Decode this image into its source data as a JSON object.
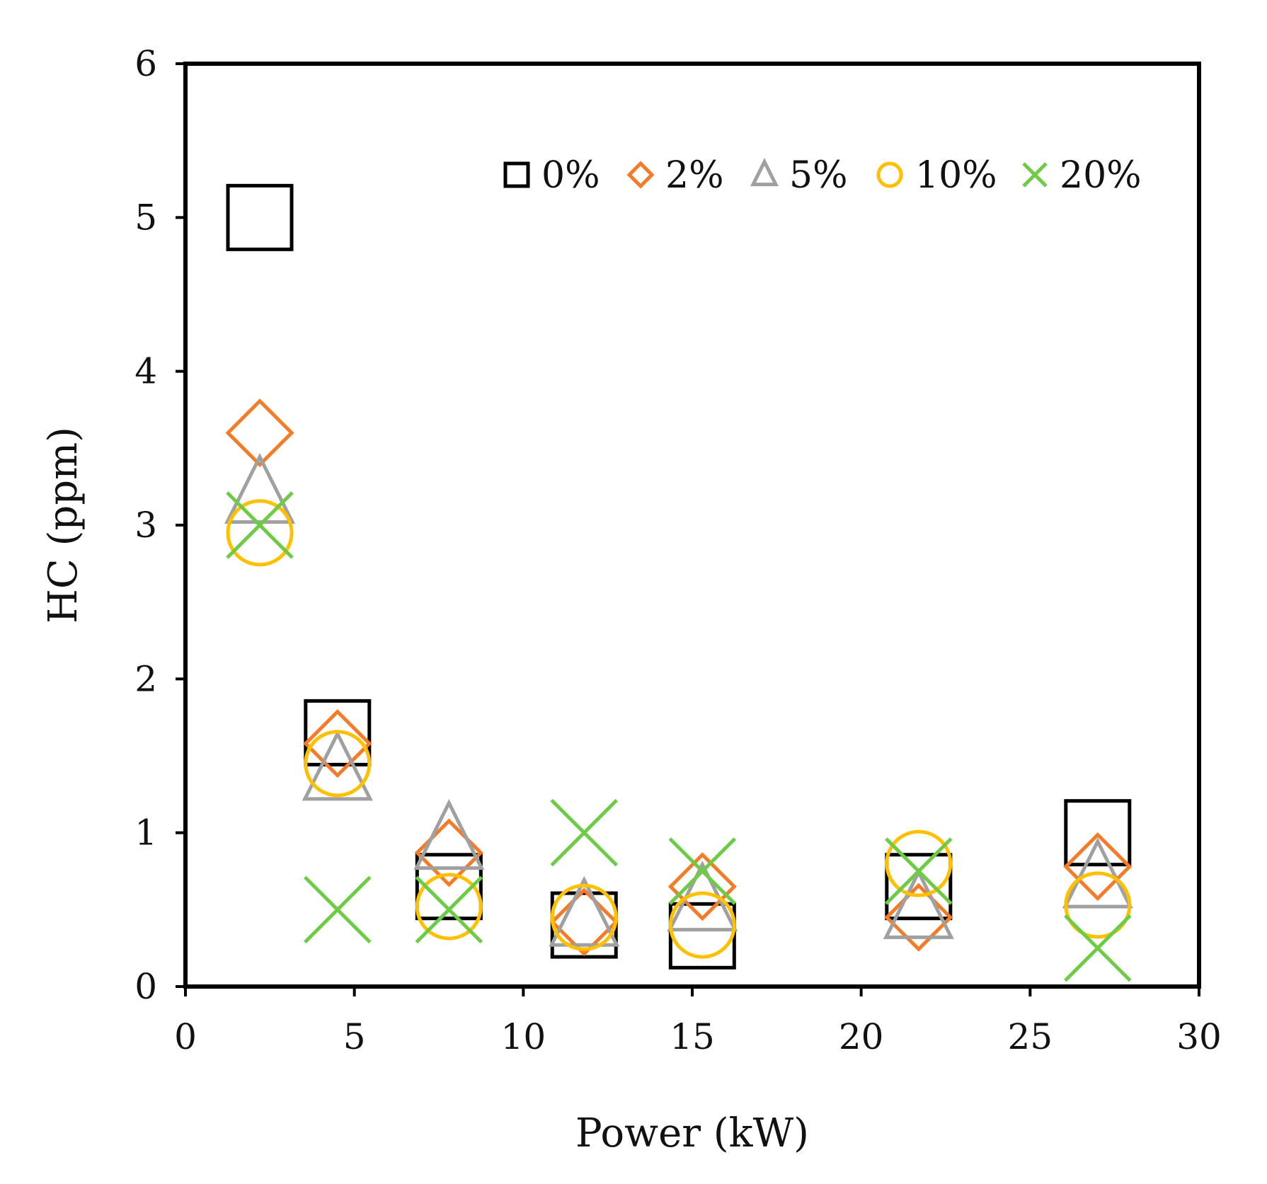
{
  "chart_data": {
    "type": "scatter",
    "title": "",
    "xlabel": "Power (kW)",
    "ylabel": "HC (ppm)",
    "xlim": [
      0,
      30
    ],
    "ylim": [
      0,
      6
    ],
    "xticks": [
      0,
      5,
      10,
      15,
      20,
      25,
      30
    ],
    "yticks": [
      0,
      1,
      2,
      3,
      4,
      5,
      6
    ],
    "grid": false,
    "legend_position": "top-right",
    "series": [
      {
        "name": "0%",
        "marker": "square",
        "color": "#000000",
        "points": [
          {
            "x": 2.2,
            "y": 5.0
          },
          {
            "x": 4.5,
            "y": 1.65
          },
          {
            "x": 7.8,
            "y": 0.65
          },
          {
            "x": 11.8,
            "y": 0.4
          },
          {
            "x": 15.3,
            "y": 0.33
          },
          {
            "x": 21.7,
            "y": 0.65
          },
          {
            "x": 27.0,
            "y": 1.0
          }
        ]
      },
      {
        "name": "2%",
        "marker": "diamond",
        "color": "#F47B28",
        "points": [
          {
            "x": 2.2,
            "y": 3.6
          },
          {
            "x": 4.5,
            "y": 1.58
          },
          {
            "x": 7.8,
            "y": 0.87
          },
          {
            "x": 11.8,
            "y": 0.42
          },
          {
            "x": 15.3,
            "y": 0.65
          },
          {
            "x": 21.7,
            "y": 0.45
          },
          {
            "x": 27.0,
            "y": 0.78
          }
        ]
      },
      {
        "name": "5%",
        "marker": "triangle",
        "color": "#A0A0A0",
        "points": [
          {
            "x": 2.2,
            "y": 3.2
          },
          {
            "x": 4.5,
            "y": 1.4
          },
          {
            "x": 7.8,
            "y": 0.95
          },
          {
            "x": 11.8,
            "y": 0.45
          },
          {
            "x": 15.3,
            "y": 0.55
          },
          {
            "x": 21.7,
            "y": 0.5
          },
          {
            "x": 27.0,
            "y": 0.7
          }
        ]
      },
      {
        "name": "10%",
        "marker": "circle",
        "color": "#FFC000",
        "points": [
          {
            "x": 2.2,
            "y": 2.95
          },
          {
            "x": 4.5,
            "y": 1.45
          },
          {
            "x": 7.8,
            "y": 0.52
          },
          {
            "x": 11.8,
            "y": 0.45
          },
          {
            "x": 15.3,
            "y": 0.4
          },
          {
            "x": 21.7,
            "y": 0.8
          },
          {
            "x": 27.0,
            "y": 0.53
          }
        ]
      },
      {
        "name": "20%",
        "marker": "x",
        "color": "#6DCB45",
        "points": [
          {
            "x": 2.2,
            "y": 3.0
          },
          {
            "x": 4.5,
            "y": 0.5
          },
          {
            "x": 7.8,
            "y": 0.5
          },
          {
            "x": 11.8,
            "y": 1.0
          },
          {
            "x": 15.3,
            "y": 0.75
          },
          {
            "x": 21.7,
            "y": 0.75
          },
          {
            "x": 27.0,
            "y": 0.25
          }
        ]
      }
    ]
  }
}
